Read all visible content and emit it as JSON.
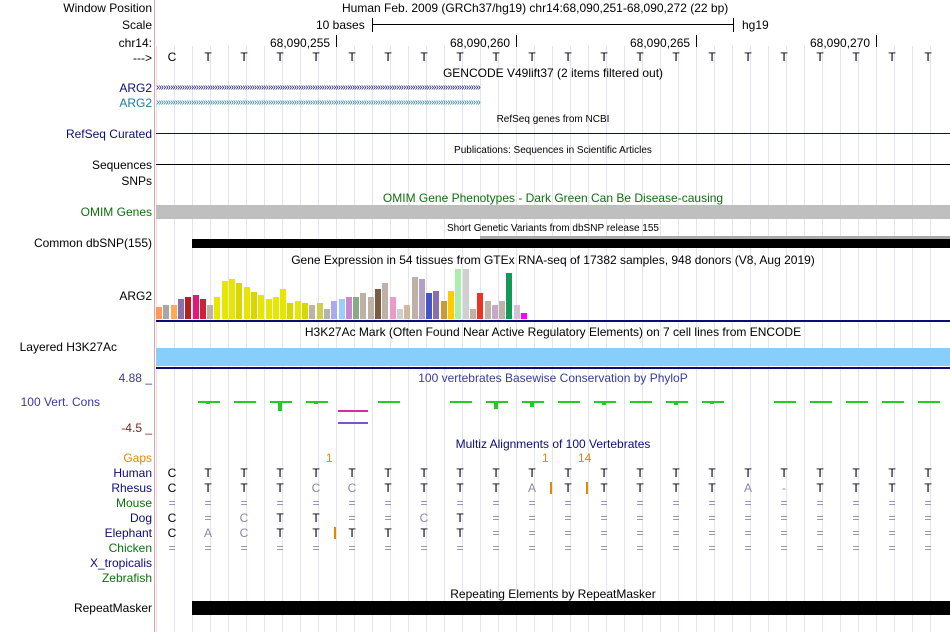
{
  "header": {
    "window_position_label": "Window Position",
    "scale_label": "Scale",
    "chrom_label": "chr14:",
    "strand_label": "--->",
    "position_text": "Human Feb. 2009 (GRCh37/hg19)   chr14:68,090,251-68,090,272 (22 bp)",
    "scale_text": "10 bases",
    "assembly": "hg19",
    "ticks": [
      "68,090,255",
      "68,090,260",
      "68,090,265",
      "68,090,270"
    ]
  },
  "bases": [
    "C",
    "T",
    "T",
    "T",
    "T",
    "T",
    "T",
    "T",
    "T",
    "T",
    "T",
    "T",
    "T",
    "T",
    "T",
    "T",
    "T",
    "T",
    "T",
    "T",
    "T",
    "T"
  ],
  "tracks": {
    "gencode": {
      "title": "GENCODE V49lift37 (2 items filtered out)",
      "item1": "ARG2",
      "item2": "ARG2",
      "color1": "#0c0c78",
      "color2": "#1b7ba6"
    },
    "refseq": {
      "label": "RefSeq Curated",
      "title": "RefSeq genes from NCBI",
      "color": "#0c0c78"
    },
    "sequences": {
      "label": "Sequences",
      "title": "Publications: Sequences in Scientific Articles"
    },
    "snps": {
      "label": "SNPs"
    },
    "omim": {
      "label": "OMIM Genes",
      "title": "OMIM Gene Phenotypes - Dark Green Can Be Disease-causing",
      "color": "#0f6f0f"
    },
    "dbsnp": {
      "label": "Common dbSNP(155)",
      "title": "Short Genetic Variants from dbSNP release 155"
    },
    "gtex": {
      "label": "ARG2",
      "title": "Gene Expression in 54 tissues from GTEx RNA-seq of 17382 samples, 948 donors (V8, Aug 2019)"
    },
    "h3k27ac": {
      "label": "Layered H3K27Ac",
      "title": "H3K27Ac Mark (Often Found Near Active Regulatory Elements) on 7 cell lines from ENCODE",
      "color": "#87cefa"
    },
    "phylop": {
      "label": "100 Vert. Cons",
      "max": "4.88 _",
      "min": "-4.5 _",
      "title": "100 vertebrates Basewise Conservation by PhyloP",
      "color": "#3a3a9e"
    },
    "multiz": {
      "title": "Multiz Alignments of 100 Vertebrates",
      "gaps_label": "Gaps",
      "gap_marks": [
        {
          "col": 4.5,
          "text": "1"
        },
        {
          "col": 10.5,
          "text": "1"
        },
        {
          "col": 11.5,
          "text": "14"
        }
      ],
      "species": [
        {
          "name": "Human",
          "color": "#0c0c78",
          "row": [
            "C",
            "T",
            "T",
            "T",
            "T",
            "T",
            "T",
            "T",
            "T",
            "T",
            "T",
            "T",
            "T",
            "T",
            "T",
            "T",
            "T",
            "T",
            "T",
            "T",
            "T",
            "T"
          ]
        },
        {
          "name": "Rhesus",
          "color": "#0c0c78",
          "row": [
            "C",
            "T",
            "T",
            "T",
            "C",
            "C",
            "T",
            "T",
            "T",
            "T",
            "A",
            "T",
            "T",
            "T",
            "T",
            "T",
            "A",
            "-",
            "T",
            "T",
            "T",
            "T"
          ]
        },
        {
          "name": "Mouse",
          "color": "#0f6f0f",
          "row": [
            "=",
            "=",
            "=",
            "=",
            "=",
            "=",
            "=",
            "=",
            "=",
            "=",
            "=",
            "=",
            "=",
            "=",
            "=",
            "=",
            "=",
            "=",
            "=",
            "=",
            "=",
            "="
          ]
        },
        {
          "name": "Dog",
          "color": "#0c0c78",
          "row": [
            "C",
            "=",
            "C",
            "T",
            "T",
            "=",
            "=",
            "C",
            "T",
            "=",
            "=",
            "=",
            "=",
            "=",
            "=",
            "=",
            "=",
            "=",
            "=",
            "=",
            "=",
            "="
          ]
        },
        {
          "name": "Elephant",
          "color": "#0c0c78",
          "row": [
            "C",
            "A",
            "C",
            "T",
            "T",
            "T",
            "T",
            "T",
            "T",
            "=",
            "=",
            "=",
            "=",
            "=",
            "=",
            "=",
            "=",
            "=",
            "=",
            "=",
            "=",
            "="
          ]
        },
        {
          "name": "Chicken",
          "color": "#0f6f0f",
          "row": [
            "=",
            "=",
            "=",
            "=",
            "=",
            "=",
            "=",
            "=",
            "=",
            "=",
            "=",
            "=",
            "=",
            "=",
            "=",
            "=",
            "=",
            "=",
            "=",
            "=",
            "=",
            "="
          ]
        },
        {
          "name": "X_tropicalis",
          "color": "#0c0c78",
          "row": []
        },
        {
          "name": "Zebrafish",
          "color": "#0f6f0f",
          "row": []
        }
      ]
    },
    "repeatmasker": {
      "label": "RepeatMasker",
      "title": "Repeating Elements by RepeatMasker"
    }
  }
}
